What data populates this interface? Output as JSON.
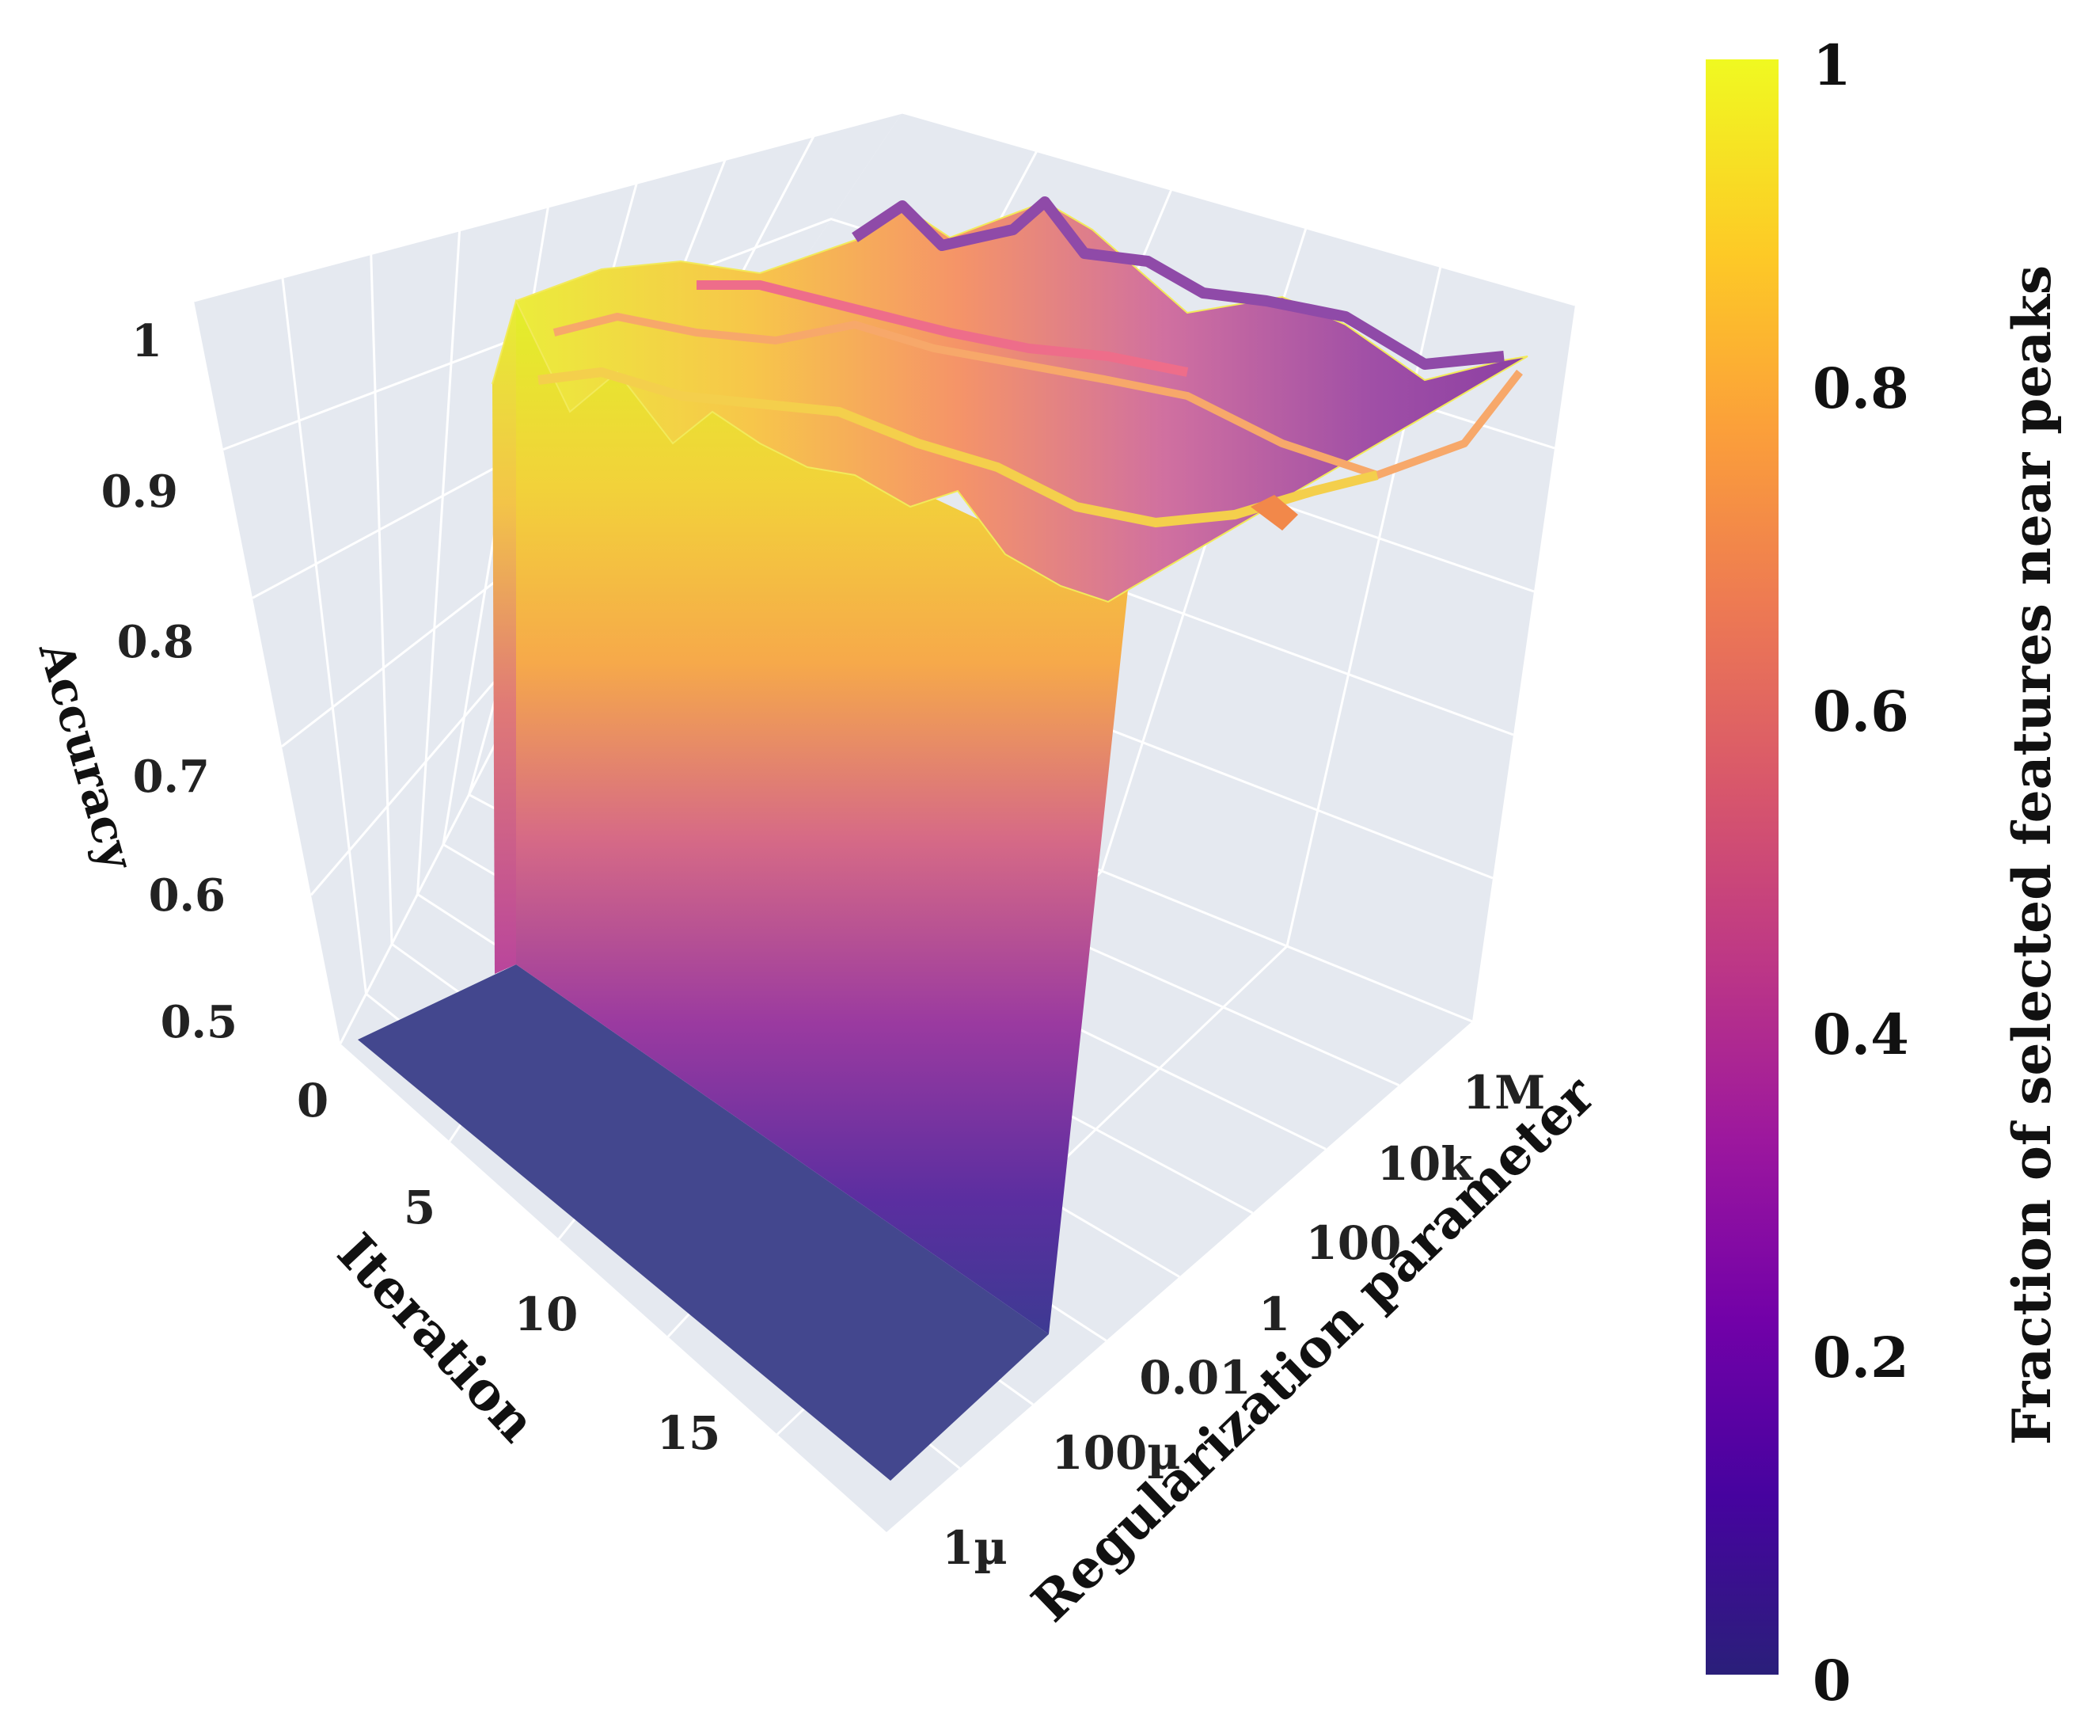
{
  "chart_data": {
    "type": "surface",
    "zlabel": "Accuracy",
    "xlabel": "Iteration",
    "ylabel": "Regularization parameter",
    "colorbar_label": "Fraction of selected features near peaks",
    "z_ticks": [
      "1",
      "0.9",
      "0.8",
      "0.7",
      "0.6",
      "0.5"
    ],
    "iteration_ticks": [
      "0",
      "5",
      "10",
      "15"
    ],
    "regularization_ticks": [
      "1M",
      "10k",
      "100",
      "1",
      "0.01",
      "100µ",
      "1µ"
    ],
    "colorbar_ticks": [
      "1",
      "0.8",
      "0.6",
      "0.4",
      "0.2",
      "0"
    ],
    "colorscale": [
      "#0d0887",
      "#46039f",
      "#7201a8",
      "#9c179e",
      "#bd3786",
      "#d8576b",
      "#ed7953",
      "#fb9f3a",
      "#fdca26",
      "#f0f921"
    ],
    "iteration_range": [
      0,
      19
    ],
    "regularization_range": [
      "1µ",
      "1M"
    ],
    "accuracy_range": [
      0.5,
      1
    ],
    "floor_accuracy": 0.5,
    "plateau": {
      "accuracy_range": [
        0.93,
        1.0
      ],
      "feature_fraction_at_low_regularization": 0.9,
      "feature_fraction_at_high_regularization": 0.15
    }
  }
}
